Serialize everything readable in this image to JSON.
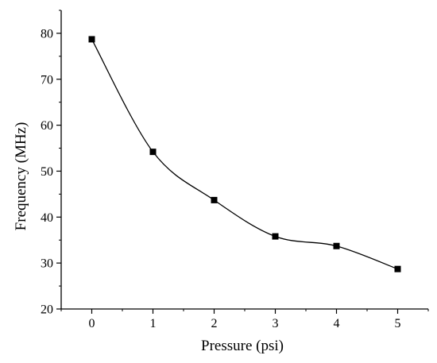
{
  "chart_data": {
    "type": "line",
    "title": "",
    "xlabel": "Pressure (psi)",
    "ylabel": "Frequency (MHz)",
    "x": [
      0,
      1,
      2,
      3,
      4,
      5
    ],
    "series": [
      {
        "values": [
          78.7,
          54.2,
          43.7,
          35.8,
          33.7,
          28.7
        ]
      }
    ],
    "xlim": [
      -0.5,
      5.5
    ],
    "ylim": [
      20,
      85
    ],
    "xticks": [
      "0",
      "1",
      "2",
      "3",
      "4",
      "5"
    ],
    "yticks": [
      "20",
      "30",
      "40",
      "50",
      "60",
      "70",
      "80"
    ],
    "marker": "square",
    "smooth": true,
    "grid": false,
    "colors": {
      "line": "#000000",
      "marker": "#000000",
      "axis": "#000000"
    }
  }
}
